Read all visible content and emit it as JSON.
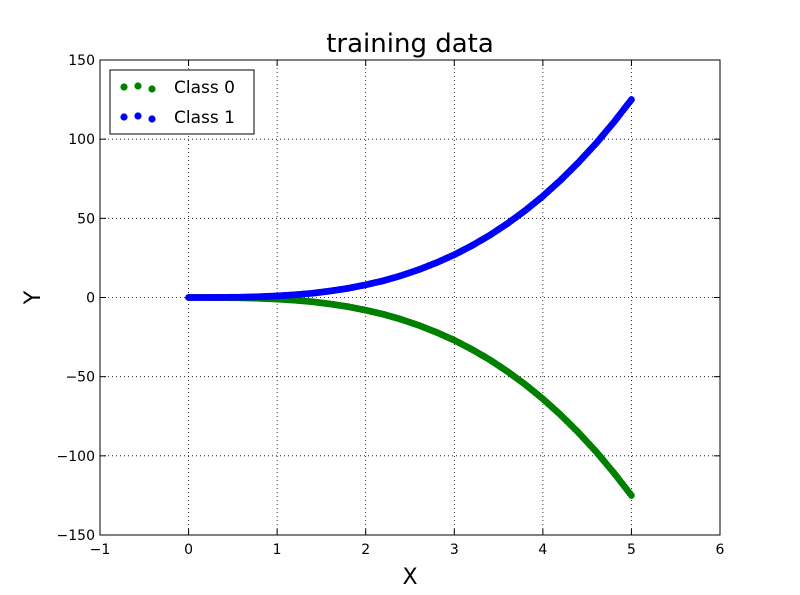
{
  "chart_data": {
    "type": "scatter",
    "title": "training data",
    "xlabel": "X",
    "ylabel": "Y",
    "xlim": [
      -1,
      6
    ],
    "ylim": [
      -150,
      150
    ],
    "xticks": [
      -1,
      0,
      1,
      2,
      3,
      4,
      5,
      6
    ],
    "yticks": [
      -150,
      -100,
      -50,
      0,
      50,
      100,
      150
    ],
    "xtick_labels": [
      "−1",
      "0",
      "1",
      "2",
      "3",
      "4",
      "5",
      "6"
    ],
    "ytick_labels": [
      "−150",
      "−100",
      "−50",
      "0",
      "50",
      "100",
      "150"
    ],
    "grid": true,
    "legend_position": "top-left",
    "series": [
      {
        "name": "Class 0",
        "color": "#008000",
        "x": [
          0,
          0.2,
          0.4,
          0.6,
          0.8,
          1.0,
          1.2,
          1.4,
          1.6,
          1.8,
          2.0,
          2.2,
          2.4,
          2.6,
          2.8,
          3.0,
          3.2,
          3.4,
          3.6,
          3.8,
          4.0,
          4.2,
          4.4,
          4.6,
          4.8,
          5.0
        ],
        "y": [
          0,
          -0.01,
          -0.06,
          -0.2,
          -0.5,
          -1,
          -1.7,
          -2.7,
          -4.1,
          -5.8,
          -8,
          -10.6,
          -13.8,
          -17.6,
          -22,
          -27,
          -32.8,
          -39.3,
          -46.7,
          -54.9,
          -64,
          -74.1,
          -85.2,
          -97.3,
          -110.6,
          -125
        ]
      },
      {
        "name": "Class 1",
        "color": "#0000ff",
        "x": [
          0,
          0.2,
          0.4,
          0.6,
          0.8,
          1.0,
          1.2,
          1.4,
          1.6,
          1.8,
          2.0,
          2.2,
          2.4,
          2.6,
          2.8,
          3.0,
          3.2,
          3.4,
          3.6,
          3.8,
          4.0,
          4.2,
          4.4,
          4.6,
          4.8,
          5.0
        ],
        "y": [
          0,
          0.01,
          0.06,
          0.2,
          0.5,
          1,
          1.7,
          2.7,
          4.1,
          5.8,
          8,
          10.6,
          13.8,
          17.6,
          22,
          27,
          32.8,
          39.3,
          46.7,
          54.9,
          64,
          74.1,
          85.2,
          97.3,
          110.6,
          125
        ]
      }
    ]
  }
}
